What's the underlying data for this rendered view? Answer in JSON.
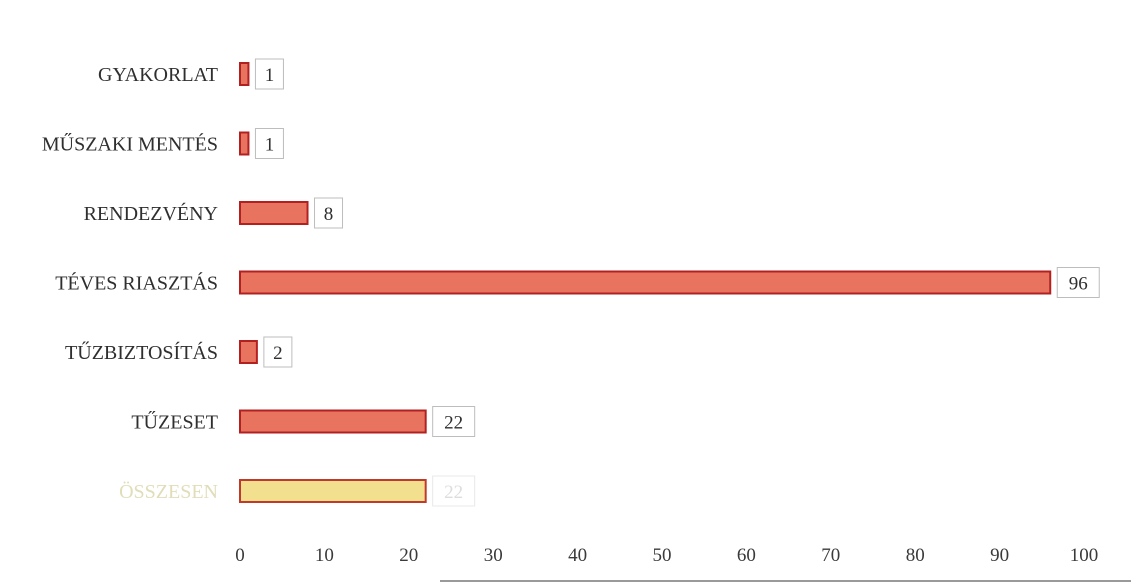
{
  "chart_data": {
    "type": "bar",
    "orientation": "horizontal",
    "categories": [
      "GYAKORLAT",
      "MŰSZAKI MENTÉS",
      "RENDEZVÉNY",
      "TÉVES RIASZTÁS",
      "TŰZBIZTOSÍTÁS",
      "TŰZESET",
      "ÖSSZESEN"
    ],
    "values": [
      1,
      1,
      8,
      96,
      2,
      22,
      22
    ],
    "data_labels": [
      "1",
      "1",
      "8",
      "96",
      "2",
      "22",
      "22"
    ],
    "xlim": [
      0,
      100
    ],
    "x_ticks": [
      0,
      10,
      20,
      30,
      40,
      50,
      60,
      70,
      80,
      90,
      100
    ],
    "grid": false,
    "legend": "none",
    "colors": {
      "bar_fill": "#e8745f",
      "bar_stroke": "#b32020",
      "last_bar_fill": "#f3e08e",
      "last_bar_stroke": "#c0392b"
    }
  }
}
